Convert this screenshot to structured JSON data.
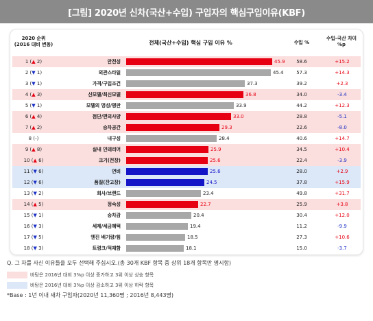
{
  "title": "[그림] 2020년 신차(국산+수입) 구입자의 핵심구입이유(KBF)",
  "headers": {
    "rank_line1": "2020 순위",
    "rank_line2": "(2016 대비 변동)",
    "reason": "전체(국산+수입) 핵심 구입 이유 %",
    "import_pct": "수입 %",
    "diff_line1": "수입-국산 차이",
    "diff_line2": "%p"
  },
  "colors": {
    "bar_red": "#e60012",
    "bar_blue": "#1515c8",
    "bar_gray": "#a8a8a8",
    "row_up_bg": "#fbdede",
    "row_down_bg": "#dce7f7",
    "positive_text": "#e60012",
    "negative_text": "#1a2fc4"
  },
  "chart_data": {
    "type": "bar",
    "orientation": "horizontal",
    "title": "전체(국산+수입) 핵심 구입 이유 %",
    "xlim": [
      0,
      50
    ],
    "rows": [
      {
        "rank": "1",
        "dir": "up",
        "arrow": "▲",
        "change": "2",
        "category": "안전성",
        "value": 45.9,
        "value_label": "45.9",
        "color": "red",
        "import_pct": "58.6",
        "diff": "+15.2",
        "diff_sign": "pos"
      },
      {
        "rank": "2",
        "dir": "down",
        "arrow": "▼",
        "change": "1",
        "category": "외관스타일",
        "value": 45.4,
        "value_label": "45.4",
        "color": "gray",
        "import_pct": "57.3",
        "diff": "+14.3",
        "diff_sign": "pos"
      },
      {
        "rank": "3",
        "dir": "down",
        "arrow": "▼",
        "change": "1",
        "category": "가격/구입조건",
        "value": 37.3,
        "value_label": "37.3",
        "color": "gray",
        "import_pct": "39.2",
        "diff": "+2.3",
        "diff_sign": "pos"
      },
      {
        "rank": "4",
        "dir": "up",
        "arrow": "▲",
        "change": "3",
        "category": "신모델/최신모델",
        "value": 36.8,
        "value_label": "36.8",
        "color": "red",
        "import_pct": "34.0",
        "diff": "-3.4",
        "diff_sign": "neg"
      },
      {
        "rank": "5",
        "dir": "down",
        "arrow": "▼",
        "change": "1",
        "category": "모델의 명성/평판",
        "value": 33.9,
        "value_label": "33.9",
        "color": "gray",
        "import_pct": "44.2",
        "diff": "+12.3",
        "diff_sign": "pos"
      },
      {
        "rank": "6",
        "dir": "up",
        "arrow": "▲",
        "change": "4",
        "category": "첨단/편의사양",
        "value": 33.0,
        "value_label": "33.0",
        "color": "red",
        "import_pct": "28.8",
        "diff": "-5.1",
        "diff_sign": "neg"
      },
      {
        "rank": "7",
        "dir": "up",
        "arrow": "▲",
        "change": "2",
        "category": "승차공간",
        "value": 29.3,
        "value_label": "29.3",
        "color": "red",
        "import_pct": "22.6",
        "diff": "-8.0",
        "diff_sign": "neg"
      },
      {
        "rank": "8",
        "dir": "none",
        "arrow": "",
        "change": "-",
        "category": "내구성",
        "value": 28.4,
        "value_label": "28.4",
        "color": "gray",
        "import_pct": "40.6",
        "diff": "+14.7",
        "diff_sign": "pos"
      },
      {
        "rank": "9",
        "dir": "up",
        "arrow": "▲",
        "change": "8",
        "category": "실내 인테리어",
        "value": 25.9,
        "value_label": "25.9",
        "color": "red",
        "import_pct": "34.5",
        "diff": "+10.4",
        "diff_sign": "pos"
      },
      {
        "rank": "10",
        "dir": "up",
        "arrow": "▲",
        "change": "6",
        "category": "크기(전장)",
        "value": 25.6,
        "value_label": "25.6",
        "color": "red",
        "import_pct": "22.4",
        "diff": "-3.9",
        "diff_sign": "neg"
      },
      {
        "rank": "11",
        "dir": "down",
        "arrow": "▼",
        "change": "6",
        "category": "연비",
        "value": 25.6,
        "value_label": "25.6",
        "color": "blue",
        "import_pct": "28.0",
        "diff": "+2.9",
        "diff_sign": "pos"
      },
      {
        "rank": "12",
        "dir": "down",
        "arrow": "▼",
        "change": "6",
        "category": "품질(잔고장)",
        "value": 24.5,
        "value_label": "24.5",
        "color": "blue",
        "import_pct": "37.8",
        "diff": "+15.9",
        "diff_sign": "pos"
      },
      {
        "rank": "13",
        "dir": "down",
        "arrow": "▼",
        "change": "2",
        "category": "회사/브랜드",
        "value": 23.4,
        "value_label": "23.4",
        "color": "gray",
        "import_pct": "49.8",
        "diff": "+31.7",
        "diff_sign": "pos"
      },
      {
        "rank": "14",
        "dir": "up",
        "arrow": "▲",
        "change": "5",
        "category": "정숙성",
        "value": 22.7,
        "value_label": "22.7",
        "color": "red",
        "import_pct": "25.9",
        "diff": "+3.8",
        "diff_sign": "pos"
      },
      {
        "rank": "15",
        "dir": "down",
        "arrow": "▼",
        "change": "1",
        "category": "승차감",
        "value": 20.4,
        "value_label": "20.4",
        "color": "gray",
        "import_pct": "30.4",
        "diff": "+12.0",
        "diff_sign": "pos"
      },
      {
        "rank": "16",
        "dir": "down",
        "arrow": "▼",
        "change": "3",
        "category": "세제/세금혜택",
        "value": 19.4,
        "value_label": "19.4",
        "color": "gray",
        "import_pct": "11.2",
        "diff": "-9.9",
        "diff_sign": "neg"
      },
      {
        "rank": "17",
        "dir": "down",
        "arrow": "▼",
        "change": "5",
        "category": "엔진 배기량/힘",
        "value": 18.5,
        "value_label": "18.5",
        "color": "gray",
        "import_pct": "27.3",
        "diff": "+10.6",
        "diff_sign": "pos"
      },
      {
        "rank": "18",
        "dir": "down",
        "arrow": "▼",
        "change": "3",
        "category": "트렁크/적재함",
        "value": 18.1,
        "value_label": "18.1",
        "color": "gray",
        "import_pct": "15.0",
        "diff": "-3.7",
        "diff_sign": "neg"
      }
    ]
  },
  "footer": {
    "question": "Q. 그 차를 사신 이유들을 모두 선택해 주십시오.(총 30개 KBF 항목 중 상위 18개 항목만 명시함)",
    "legend_up": "바탕은 2016년 대비 3%p 이상 증가하고 3위 이상 상승 항목",
    "legend_down": "바탕은 2016년 대비 3%p 이상 감소하고 3위 이상 하락 항목",
    "base_note": "*Base : 1년 이내 새차 구입자(2020년 11,360명 ; 2016년 8,443명)"
  }
}
